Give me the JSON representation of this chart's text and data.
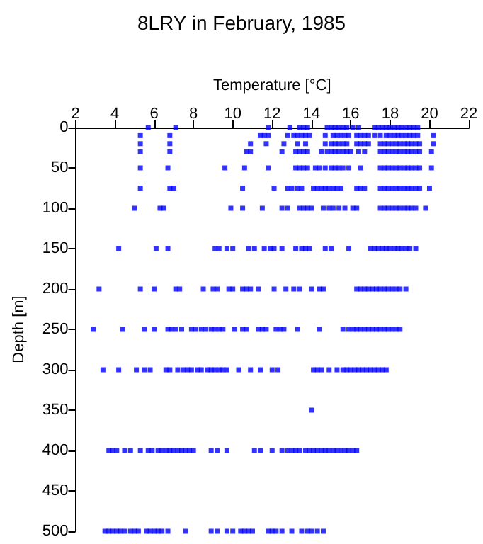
{
  "chart_data": {
    "type": "scatter",
    "title": "8LRY in February, 1985",
    "xlabel": "Temperature [°C]",
    "ylabel": "Depth [m]",
    "xlim": [
      2,
      22
    ],
    "xticks": [
      2,
      4,
      6,
      8,
      10,
      12,
      14,
      16,
      18,
      20,
      22
    ],
    "ylim": [
      500,
      0
    ],
    "yticks": [
      0,
      50,
      100,
      150,
      200,
      250,
      300,
      350,
      400,
      450,
      500
    ],
    "grid": false,
    "marker": "square",
    "series": [
      {
        "color": "#0000ff",
        "x": [
          5.7,
          7.1,
          11.8,
          12.9,
          13.4,
          13.6,
          13.8,
          14.8,
          15.0,
          15.2,
          15.4,
          15.6,
          15.8,
          16.1,
          16.4,
          17.2,
          17.4,
          17.6,
          17.8,
          18.0,
          18.2,
          18.4,
          18.6,
          18.8,
          19.0,
          19.2,
          19.4
        ],
        "values": [
          0,
          0,
          0,
          0,
          0,
          0,
          0,
          0,
          0,
          0,
          0,
          0,
          0,
          0,
          0,
          0,
          0,
          0,
          0,
          0,
          0,
          0,
          0,
          0,
          0,
          0,
          0
        ]
      },
      {
        "color": "#0000ff",
        "x": [
          5.3,
          6.8,
          11.4,
          11.6,
          11.8,
          12.8,
          13.1,
          13.3,
          13.5,
          13.7,
          13.9,
          14.7,
          15.1,
          15.3,
          15.5,
          15.7,
          15.9,
          16.3,
          16.5,
          16.7,
          16.9,
          17.2,
          17.5,
          17.8,
          18.0,
          18.2,
          18.4,
          18.6,
          18.8,
          19.0,
          19.2,
          19.4,
          20.2
        ],
        "values": [
          10,
          10,
          10,
          10,
          10,
          10,
          10,
          10,
          10,
          10,
          10,
          10,
          10,
          10,
          10,
          10,
          10,
          10,
          10,
          10,
          10,
          10,
          10,
          10,
          10,
          10,
          10,
          10,
          10,
          10,
          10,
          10,
          10
        ]
      },
      {
        "color": "#0000ff",
        "x": [
          5.3,
          6.8,
          10.9,
          11.7,
          12.6,
          13.3,
          13.7,
          14.7,
          15.0,
          15.2,
          15.4,
          15.6,
          15.8,
          16.3,
          16.5,
          16.7,
          16.9,
          17.5,
          17.7,
          17.9,
          18.1,
          18.3,
          18.5,
          18.7,
          18.9,
          19.1,
          19.3,
          19.5,
          20.2
        ],
        "values": [
          20,
          20,
          20,
          20,
          20,
          20,
          20,
          20,
          20,
          20,
          20,
          20,
          20,
          20,
          20,
          20,
          20,
          20,
          20,
          20,
          20,
          20,
          20,
          20,
          20,
          20,
          20,
          20,
          20
        ]
      },
      {
        "color": "#0000ff",
        "x": [
          5.3,
          6.8,
          10.7,
          10.9,
          12.5,
          13.2,
          13.4,
          13.6,
          13.8,
          14.5,
          14.8,
          15.0,
          15.2,
          15.4,
          15.6,
          15.8,
          16.0,
          16.4,
          16.7,
          17.5,
          17.7,
          17.9,
          18.1,
          18.3,
          18.5,
          18.7,
          18.9,
          19.1,
          19.3,
          19.5,
          20.1
        ],
        "values": [
          30,
          30,
          30,
          30,
          30,
          30,
          30,
          30,
          30,
          30,
          30,
          30,
          30,
          30,
          30,
          30,
          30,
          30,
          30,
          30,
          30,
          30,
          30,
          30,
          30,
          30,
          30,
          30,
          30,
          30,
          30
        ]
      },
      {
        "color": "#0000ff",
        "x": [
          5.3,
          6.7,
          9.6,
          10.6,
          11.8,
          13.2,
          13.4,
          13.6,
          13.8,
          14.2,
          14.4,
          14.7,
          15.0,
          15.2,
          15.4,
          15.6,
          15.9,
          16.5,
          17.5,
          17.7,
          17.9,
          18.1,
          18.3,
          18.5,
          18.7,
          18.9,
          19.1,
          19.3,
          19.5,
          20.1
        ],
        "values": [
          50,
          50,
          50,
          50,
          50,
          50,
          50,
          50,
          50,
          50,
          50,
          50,
          50,
          50,
          50,
          50,
          50,
          50,
          50,
          50,
          50,
          50,
          50,
          50,
          50,
          50,
          50,
          50,
          50,
          50
        ]
      },
      {
        "color": "#0000ff",
        "x": [
          5.3,
          6.8,
          7.0,
          10.5,
          12.1,
          12.8,
          13.0,
          13.3,
          13.5,
          14.1,
          14.3,
          14.5,
          14.7,
          14.9,
          15.1,
          15.3,
          15.5,
          16.3,
          16.5,
          16.7,
          17.5,
          17.7,
          17.9,
          18.1,
          18.3,
          18.5,
          18.7,
          18.9,
          19.1,
          19.3,
          19.5,
          20.0
        ],
        "values": [
          75,
          75,
          75,
          75,
          75,
          75,
          75,
          75,
          75,
          75,
          75,
          75,
          75,
          75,
          75,
          75,
          75,
          75,
          75,
          75,
          75,
          75,
          75,
          75,
          75,
          75,
          75,
          75,
          75,
          75,
          75,
          75
        ]
      },
      {
        "color": "#0000ff",
        "x": [
          5.0,
          6.3,
          6.5,
          9.9,
          10.5,
          11.5,
          12.5,
          12.8,
          13.4,
          13.6,
          13.8,
          14.0,
          14.6,
          14.9,
          15.1,
          15.4,
          15.7,
          16.1,
          16.3,
          17.5,
          17.7,
          17.9,
          18.1,
          18.3,
          18.5,
          18.7,
          18.9,
          19.1,
          19.3,
          19.8
        ],
        "values": [
          100,
          100,
          100,
          100,
          100,
          100,
          100,
          100,
          100,
          100,
          100,
          100,
          100,
          100,
          100,
          100,
          100,
          100,
          100,
          100,
          100,
          100,
          100,
          100,
          100,
          100,
          100,
          100,
          100,
          100
        ]
      },
      {
        "color": "#0000ff",
        "x": [
          4.2,
          6.1,
          6.7,
          9.1,
          9.3,
          9.7,
          10.0,
          10.8,
          11.1,
          11.6,
          11.9,
          12.1,
          12.5,
          13.2,
          13.5,
          13.7,
          13.9,
          14.7,
          15.0,
          15.9,
          17.0,
          17.2,
          17.4,
          17.6,
          17.8,
          18.0,
          18.2,
          18.4,
          18.6,
          18.8,
          19.0,
          19.3
        ],
        "values": [
          150,
          150,
          150,
          150,
          150,
          150,
          150,
          150,
          150,
          150,
          150,
          150,
          150,
          150,
          150,
          150,
          150,
          150,
          150,
          150,
          150,
          150,
          150,
          150,
          150,
          150,
          150,
          150,
          150,
          150,
          150,
          150
        ]
      },
      {
        "color": "#0000ff",
        "x": [
          3.2,
          5.3,
          6.0,
          7.1,
          7.3,
          8.5,
          9.0,
          9.2,
          9.8,
          10.0,
          10.5,
          10.7,
          10.9,
          11.3,
          12.1,
          12.7,
          13.1,
          13.4,
          14.0,
          14.4,
          14.6,
          16.3,
          16.5,
          16.7,
          16.9,
          17.1,
          17.3,
          17.5,
          17.7,
          17.9,
          18.1,
          18.3,
          18.5,
          18.8
        ],
        "values": [
          200,
          200,
          200,
          200,
          200,
          200,
          200,
          200,
          200,
          200,
          200,
          200,
          200,
          200,
          200,
          200,
          200,
          200,
          200,
          200,
          200,
          200,
          200,
          200,
          200,
          200,
          200,
          200,
          200,
          200,
          200,
          200,
          200,
          200
        ]
      },
      {
        "color": "#0000ff",
        "x": [
          2.9,
          4.4,
          5.5,
          6.0,
          6.7,
          6.9,
          7.1,
          7.4,
          7.9,
          8.1,
          8.4,
          8.6,
          8.9,
          9.1,
          9.3,
          9.5,
          10.1,
          10.5,
          10.7,
          11.3,
          11.5,
          11.7,
          12.2,
          12.4,
          12.6,
          13.3,
          14.4,
          15.6,
          15.9,
          16.1,
          16.3,
          16.5,
          16.7,
          16.9,
          17.1,
          17.3,
          17.5,
          17.7,
          17.9,
          18.1,
          18.3,
          18.5
        ],
        "values": [
          250,
          250,
          250,
          250,
          250,
          250,
          250,
          250,
          250,
          250,
          250,
          250,
          250,
          250,
          250,
          250,
          250,
          250,
          250,
          250,
          250,
          250,
          250,
          250,
          250,
          250,
          250,
          250,
          250,
          250,
          250,
          250,
          250,
          250,
          250,
          250,
          250,
          250,
          250,
          250,
          250,
          250
        ]
      },
      {
        "color": "#0000ff",
        "x": [
          3.4,
          4.2,
          5.1,
          5.5,
          5.8,
          6.6,
          6.8,
          7.2,
          7.5,
          7.7,
          7.9,
          8.2,
          8.4,
          8.7,
          8.9,
          9.1,
          9.3,
          9.5,
          9.7,
          10.3,
          10.9,
          11.4,
          12.0,
          12.3,
          14.1,
          14.3,
          14.5,
          14.9,
          15.3,
          15.6,
          15.8,
          16.0,
          16.2,
          16.4,
          16.6,
          16.8,
          17.0,
          17.2,
          17.4,
          17.6,
          17.8
        ],
        "values": [
          300,
          300,
          300,
          300,
          300,
          300,
          300,
          300,
          300,
          300,
          300,
          300,
          300,
          300,
          300,
          300,
          300,
          300,
          300,
          300,
          300,
          300,
          300,
          300,
          300,
          300,
          300,
          300,
          300,
          300,
          300,
          300,
          300,
          300,
          300,
          300,
          300,
          300,
          300,
          300,
          300
        ]
      },
      {
        "color": "#0000ff",
        "x": [
          14.0
        ],
        "values": [
          350
        ]
      },
      {
        "color": "#0000ff",
        "x": [
          3.7,
          3.9,
          4.1,
          4.5,
          4.8,
          5.3,
          5.7,
          5.9,
          6.2,
          6.4,
          6.6,
          6.8,
          7.0,
          7.2,
          7.4,
          7.6,
          7.8,
          8.0,
          8.9,
          9.2,
          9.7,
          11.1,
          11.4,
          12.0,
          12.5,
          12.8,
          13.0,
          13.2,
          13.4,
          13.7,
          13.9,
          14.1,
          14.3,
          14.5,
          14.7,
          14.9,
          15.1,
          15.3,
          15.5,
          15.7,
          15.9,
          16.1,
          16.3
        ],
        "values": [
          400,
          400,
          400,
          400,
          400,
          400,
          400,
          400,
          400,
          400,
          400,
          400,
          400,
          400,
          400,
          400,
          400,
          400,
          400,
          400,
          400,
          400,
          400,
          400,
          400,
          400,
          400,
          400,
          400,
          400,
          400,
          400,
          400,
          400,
          400,
          400,
          400,
          400,
          400,
          400,
          400,
          400,
          400
        ]
      },
      {
        "color": "#0000ff",
        "x": [
          3.5,
          3.7,
          3.9,
          4.1,
          4.3,
          4.5,
          4.8,
          5.0,
          5.2,
          5.6,
          5.8,
          6.0,
          6.2,
          6.4,
          6.7,
          7.6,
          8.9,
          9.2,
          9.7,
          10.0,
          10.4,
          10.6,
          10.8,
          11.0,
          11.8,
          12.0,
          12.2,
          12.5,
          13.0,
          13.5,
          13.8,
          14.0,
          14.3,
          14.6
        ],
        "values": [
          500,
          500,
          500,
          500,
          500,
          500,
          500,
          500,
          500,
          500,
          500,
          500,
          500,
          500,
          500,
          500,
          500,
          500,
          500,
          500,
          500,
          500,
          500,
          500,
          500,
          500,
          500,
          500,
          500,
          500,
          500,
          500,
          500,
          500
        ]
      }
    ]
  }
}
